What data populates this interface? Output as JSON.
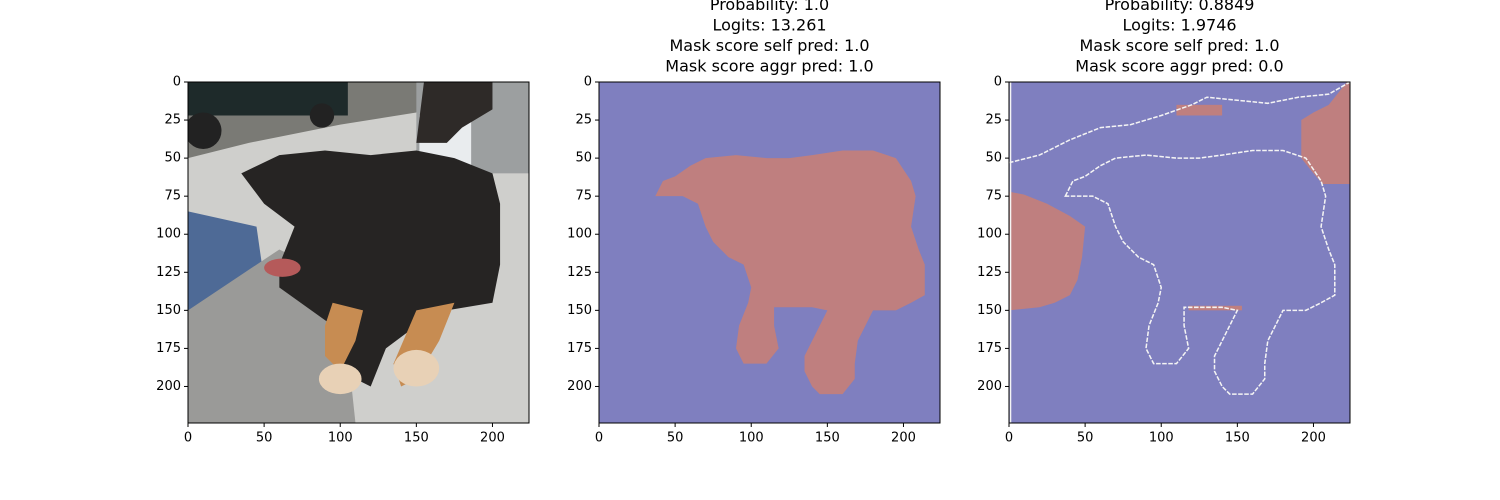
{
  "chart_data": [
    {
      "type": "image",
      "xlim": [
        0,
        224
      ],
      "ylim": [
        224,
        0
      ],
      "xticks": [
        0,
        50,
        100,
        150,
        200
      ],
      "yticks": [
        0,
        25,
        50,
        75,
        100,
        125,
        150,
        175,
        200
      ]
    },
    {
      "type": "image",
      "title": [
        "Probability: 1.0",
        "Logits: 13.261",
        "Mask score self pred: 1.0",
        "Mask score aggr pred: 1.0"
      ],
      "xlim": [
        0,
        224
      ],
      "ylim": [
        224,
        0
      ],
      "xticks": [
        0,
        50,
        100,
        150,
        200
      ],
      "yticks": [
        0,
        25,
        50,
        75,
        100,
        125,
        150,
        175,
        200
      ]
    },
    {
      "type": "image",
      "title": [
        "Probability: 0.8849",
        "Logits: 1.9746",
        "Mask score self pred: 1.0",
        "Mask score aggr pred: 0.0"
      ],
      "xlim": [
        0,
        224
      ],
      "ylim": [
        224,
        0
      ],
      "xticks": [
        0,
        50,
        100,
        150,
        200
      ],
      "yticks": [
        0,
        25,
        50,
        75,
        100,
        125,
        150,
        175,
        200
      ]
    }
  ]
}
